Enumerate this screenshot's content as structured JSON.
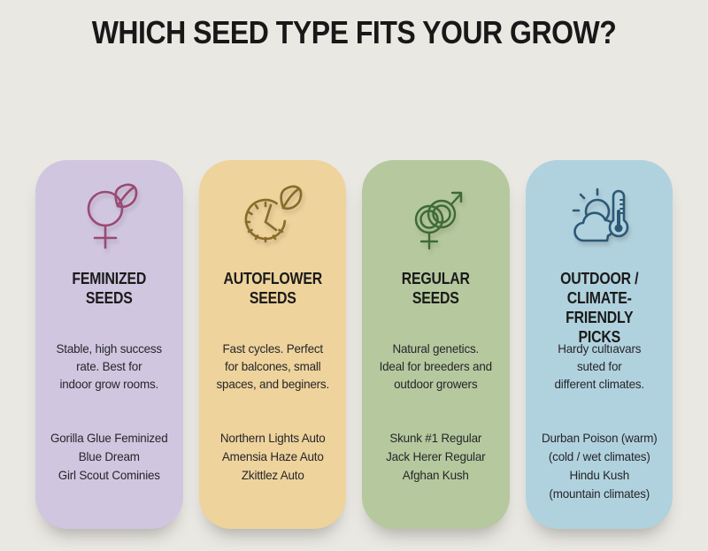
{
  "title": "WHICH SEED TYPE FITS YOUR GROW?",
  "background_color": "#eae8e3",
  "cards": [
    {
      "heading": "FEMINIZED\nSEEDS",
      "icon": "female-symbol-leaf-icon",
      "description": "Stable, high success\nrate. Best for\nindoor grow rooms.",
      "strains": [
        "Gorilla Glue Feminized",
        "Blue Dream",
        "Girl Scout Cominies"
      ],
      "bg_color": "#d1c6e0",
      "icon_color": "#9a4a74"
    },
    {
      "heading": "AUTOFLOWER\nSEEDS",
      "icon": "clock-leaf-icon",
      "description": "Fast cycles. Perfect\nfor balcones, small\nspaces, and beginers.",
      "strains": [
        "Northern Lights Auto",
        "Amensia Haze Auto",
        "Zkittlez Auto"
      ],
      "bg_color": "#eed39c",
      "icon_color": "#8a6c28"
    },
    {
      "heading": "REGULAR\nSEEDS",
      "icon": "male-female-symbols-icon",
      "description": "Natural genetics.\nIdeal for breeders and\noutdoor growers",
      "strains": [
        "Skunk #1 Regular",
        "Jack Herer Regular",
        "Afghan Kush"
      ],
      "bg_color": "#b6c99e",
      "icon_color": "#3c6b33"
    },
    {
      "heading": "OUTDOOR /\nCLIMATE-FRIENDLY\nPICKS",
      "icon": "sun-cloud-thermometer-icon",
      "description": "Hardy cultıavars\nsuted for\ndifferent climates.",
      "strains": [
        "Durban Poison (warm)",
        "(cold / wet climates)",
        "Hindu Kush",
        "(mountain climates)"
      ],
      "bg_color": "#b0d2de",
      "icon_color": "#2d5876"
    }
  ]
}
